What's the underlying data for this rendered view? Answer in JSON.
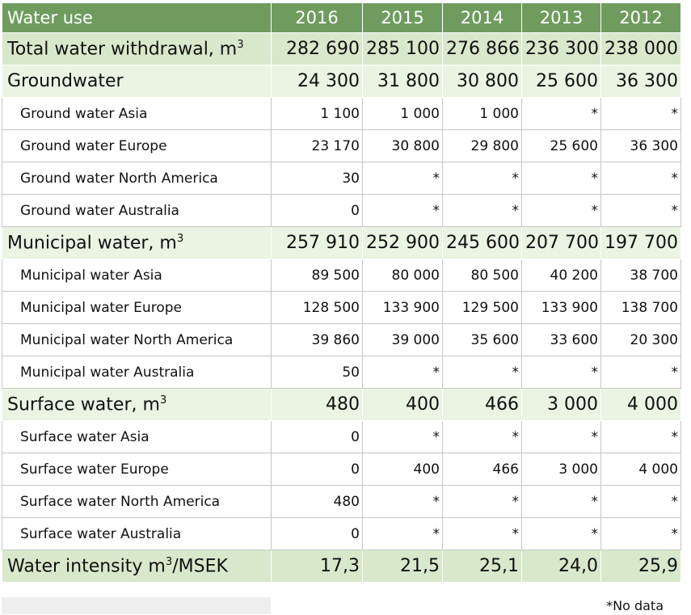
{
  "table": {
    "header": [
      "Water use",
      "2016",
      "2015",
      "2014",
      "2013",
      "2012"
    ],
    "rows": [
      {
        "kind": "total",
        "label_parts": [
          {
            "text": "Total water withdrawal, m"
          },
          {
            "sup": "3"
          }
        ],
        "cells": [
          "282 690",
          "285 100",
          "276 866",
          "236 300",
          "238 000"
        ]
      },
      {
        "kind": "group",
        "label_parts": [
          {
            "text": "Groundwater"
          }
        ],
        "cells": [
          "24 300",
          "31 800",
          "30 800",
          "25 600",
          "36 300"
        ]
      },
      {
        "kind": "sub",
        "label_parts": [
          {
            "text": "Ground water Asia"
          }
        ],
        "cells": [
          "1 100",
          "1 000",
          "1 000",
          "*",
          "*"
        ]
      },
      {
        "kind": "sub",
        "label_parts": [
          {
            "text": "Ground water Europe"
          }
        ],
        "cells": [
          "23 170",
          "30 800",
          "29 800",
          "25 600",
          "36 300"
        ]
      },
      {
        "kind": "sub",
        "label_parts": [
          {
            "text": "Ground water North America"
          }
        ],
        "cells": [
          "30",
          "*",
          "*",
          "*",
          "*"
        ]
      },
      {
        "kind": "sub",
        "label_parts": [
          {
            "text": "Ground water Australia"
          }
        ],
        "cells": [
          "0",
          "*",
          "*",
          "*",
          "*"
        ]
      },
      {
        "kind": "group",
        "label_parts": [
          {
            "text": "Municipal water, m"
          },
          {
            "sup": "3"
          }
        ],
        "cells": [
          "257 910",
          "252 900",
          "245 600",
          "207 700",
          "197 700"
        ]
      },
      {
        "kind": "sub",
        "label_parts": [
          {
            "text": "Municipal water Asia"
          }
        ],
        "cells": [
          "89 500",
          "80 000",
          "80 500",
          "40 200",
          "38 700"
        ]
      },
      {
        "kind": "sub",
        "label_parts": [
          {
            "text": "Municipal water Europe"
          }
        ],
        "cells": [
          "128 500",
          "133 900",
          "129 500",
          "133 900",
          "138 700"
        ]
      },
      {
        "kind": "sub",
        "label_parts": [
          {
            "text": "Municipal water North America"
          }
        ],
        "cells": [
          "39 860",
          "39 000",
          "35 600",
          "33 600",
          "20 300"
        ]
      },
      {
        "kind": "sub",
        "label_parts": [
          {
            "text": "Municipal water Australia"
          }
        ],
        "cells": [
          "50",
          "*",
          "*",
          "*",
          "*"
        ]
      },
      {
        "kind": "group",
        "label_parts": [
          {
            "text": "Surface water, m"
          },
          {
            "sup": "3"
          }
        ],
        "cells": [
          "480",
          "400",
          "466",
          "3 000",
          "4 000"
        ]
      },
      {
        "kind": "sub",
        "label_parts": [
          {
            "text": "Surface water Asia"
          }
        ],
        "cells": [
          "0",
          "*",
          "*",
          "*",
          "*"
        ]
      },
      {
        "kind": "sub",
        "label_parts": [
          {
            "text": "Surface water Europe"
          }
        ],
        "cells": [
          "0",
          "400",
          "466",
          "3 000",
          "4 000"
        ]
      },
      {
        "kind": "sub",
        "label_parts": [
          {
            "text": "Surface water North America"
          }
        ],
        "cells": [
          "480",
          "*",
          "*",
          "*",
          "*"
        ]
      },
      {
        "kind": "sub",
        "label_parts": [
          {
            "text": "Surface water Australia"
          }
        ],
        "cells": [
          "0",
          "*",
          "*",
          "*",
          "*"
        ]
      },
      {
        "kind": "total",
        "label_parts": [
          {
            "text": "Water intensity m"
          },
          {
            "sup": "3"
          },
          {
            "text": "/MSEK"
          }
        ],
        "cells": [
          "17,3",
          "21,5",
          "25,1",
          "24,0",
          "25,9"
        ]
      }
    ],
    "footnote": "*No data"
  }
}
